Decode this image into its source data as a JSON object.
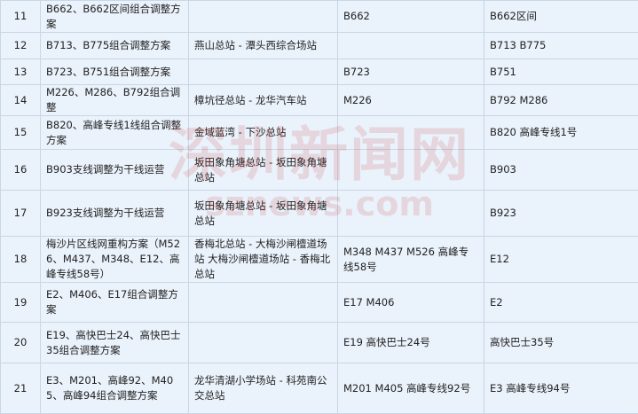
{
  "table": {
    "rows": [
      [
        "11",
        "B662、B662区间组合调整方案",
        null,
        "B662",
        "B662区间"
      ],
      [
        "12",
        "B713、B775组合调整方案",
        "燕山总站 - 潭头西综合场站",
        null,
        "B713 B775"
      ],
      [
        "13",
        "B723、B751组合调整方案",
        null,
        "B723",
        "B751"
      ],
      [
        "14",
        "M226、M286、B792组合调整",
        "樟坑径总站 - 龙华汽车站",
        "M226",
        "B792 M286"
      ],
      [
        "15",
        "B820、高峰专线1线组合调整方案",
        "金域蓝湾 - 下沙总站",
        null,
        "B820 高峰专线1号"
      ],
      [
        "16",
        "B903支线调整为干线运营",
        "坂田象角塘总站 - 坂田象角塘总站",
        null,
        "B903"
      ],
      [
        "17",
        "B923支线调整为干线运营",
        "坂田象角塘总站 - 坂田象角塘总站",
        null,
        "B923"
      ],
      [
        "18",
        "梅沙片区线网重构方案（M526、M437、M348、E12、高峰专线58号）",
        "香梅北总站 - 大梅沙闸檀道场站 大梅沙闸檀道场站 - 香梅北总站",
        "M348 M437 M526 高峰专线58号",
        "E12"
      ],
      [
        "19",
        "E2、M406、E17组合调整方案",
        null,
        "E17 M406",
        "E2"
      ],
      [
        "20",
        "E19、高快巴士24、高快巴士35组合调整方案",
        null,
        "E19 高快巴士24号",
        "高快巴士35号"
      ],
      [
        "21",
        "E3、M201、高峰92、M405、高峰94组合调整方案",
        "龙华清湖小学场站 - 科苑南公交总站",
        "M201 M405 高峰专线92号",
        "E3 高峰专线94号"
      ]
    ]
  },
  "watermark": {
    "name": "深圳新闻网",
    "url": "sznews.com"
  }
}
